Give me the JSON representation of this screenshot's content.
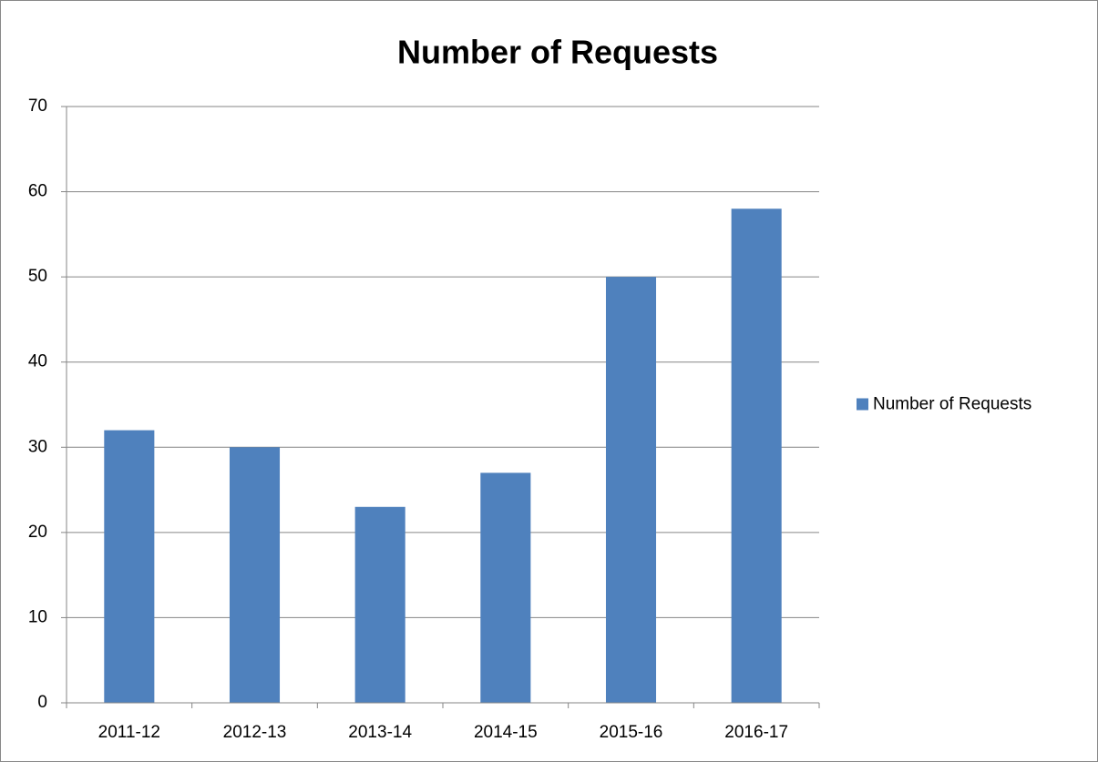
{
  "chart_data": {
    "type": "bar",
    "title": "Number of Requests",
    "categories": [
      "2011-12",
      "2012-13",
      "2013-14",
      "2014-15",
      "2015-16",
      "2016-17"
    ],
    "series": [
      {
        "name": "Number of Requests",
        "color": "#4f81bd",
        "values": [
          32,
          30,
          23,
          27,
          50,
          58
        ]
      }
    ],
    "ylim": [
      0,
      70
    ],
    "yticks": [
      0,
      10,
      20,
      30,
      40,
      50,
      60,
      70
    ],
    "grid": true,
    "legend": "right"
  }
}
